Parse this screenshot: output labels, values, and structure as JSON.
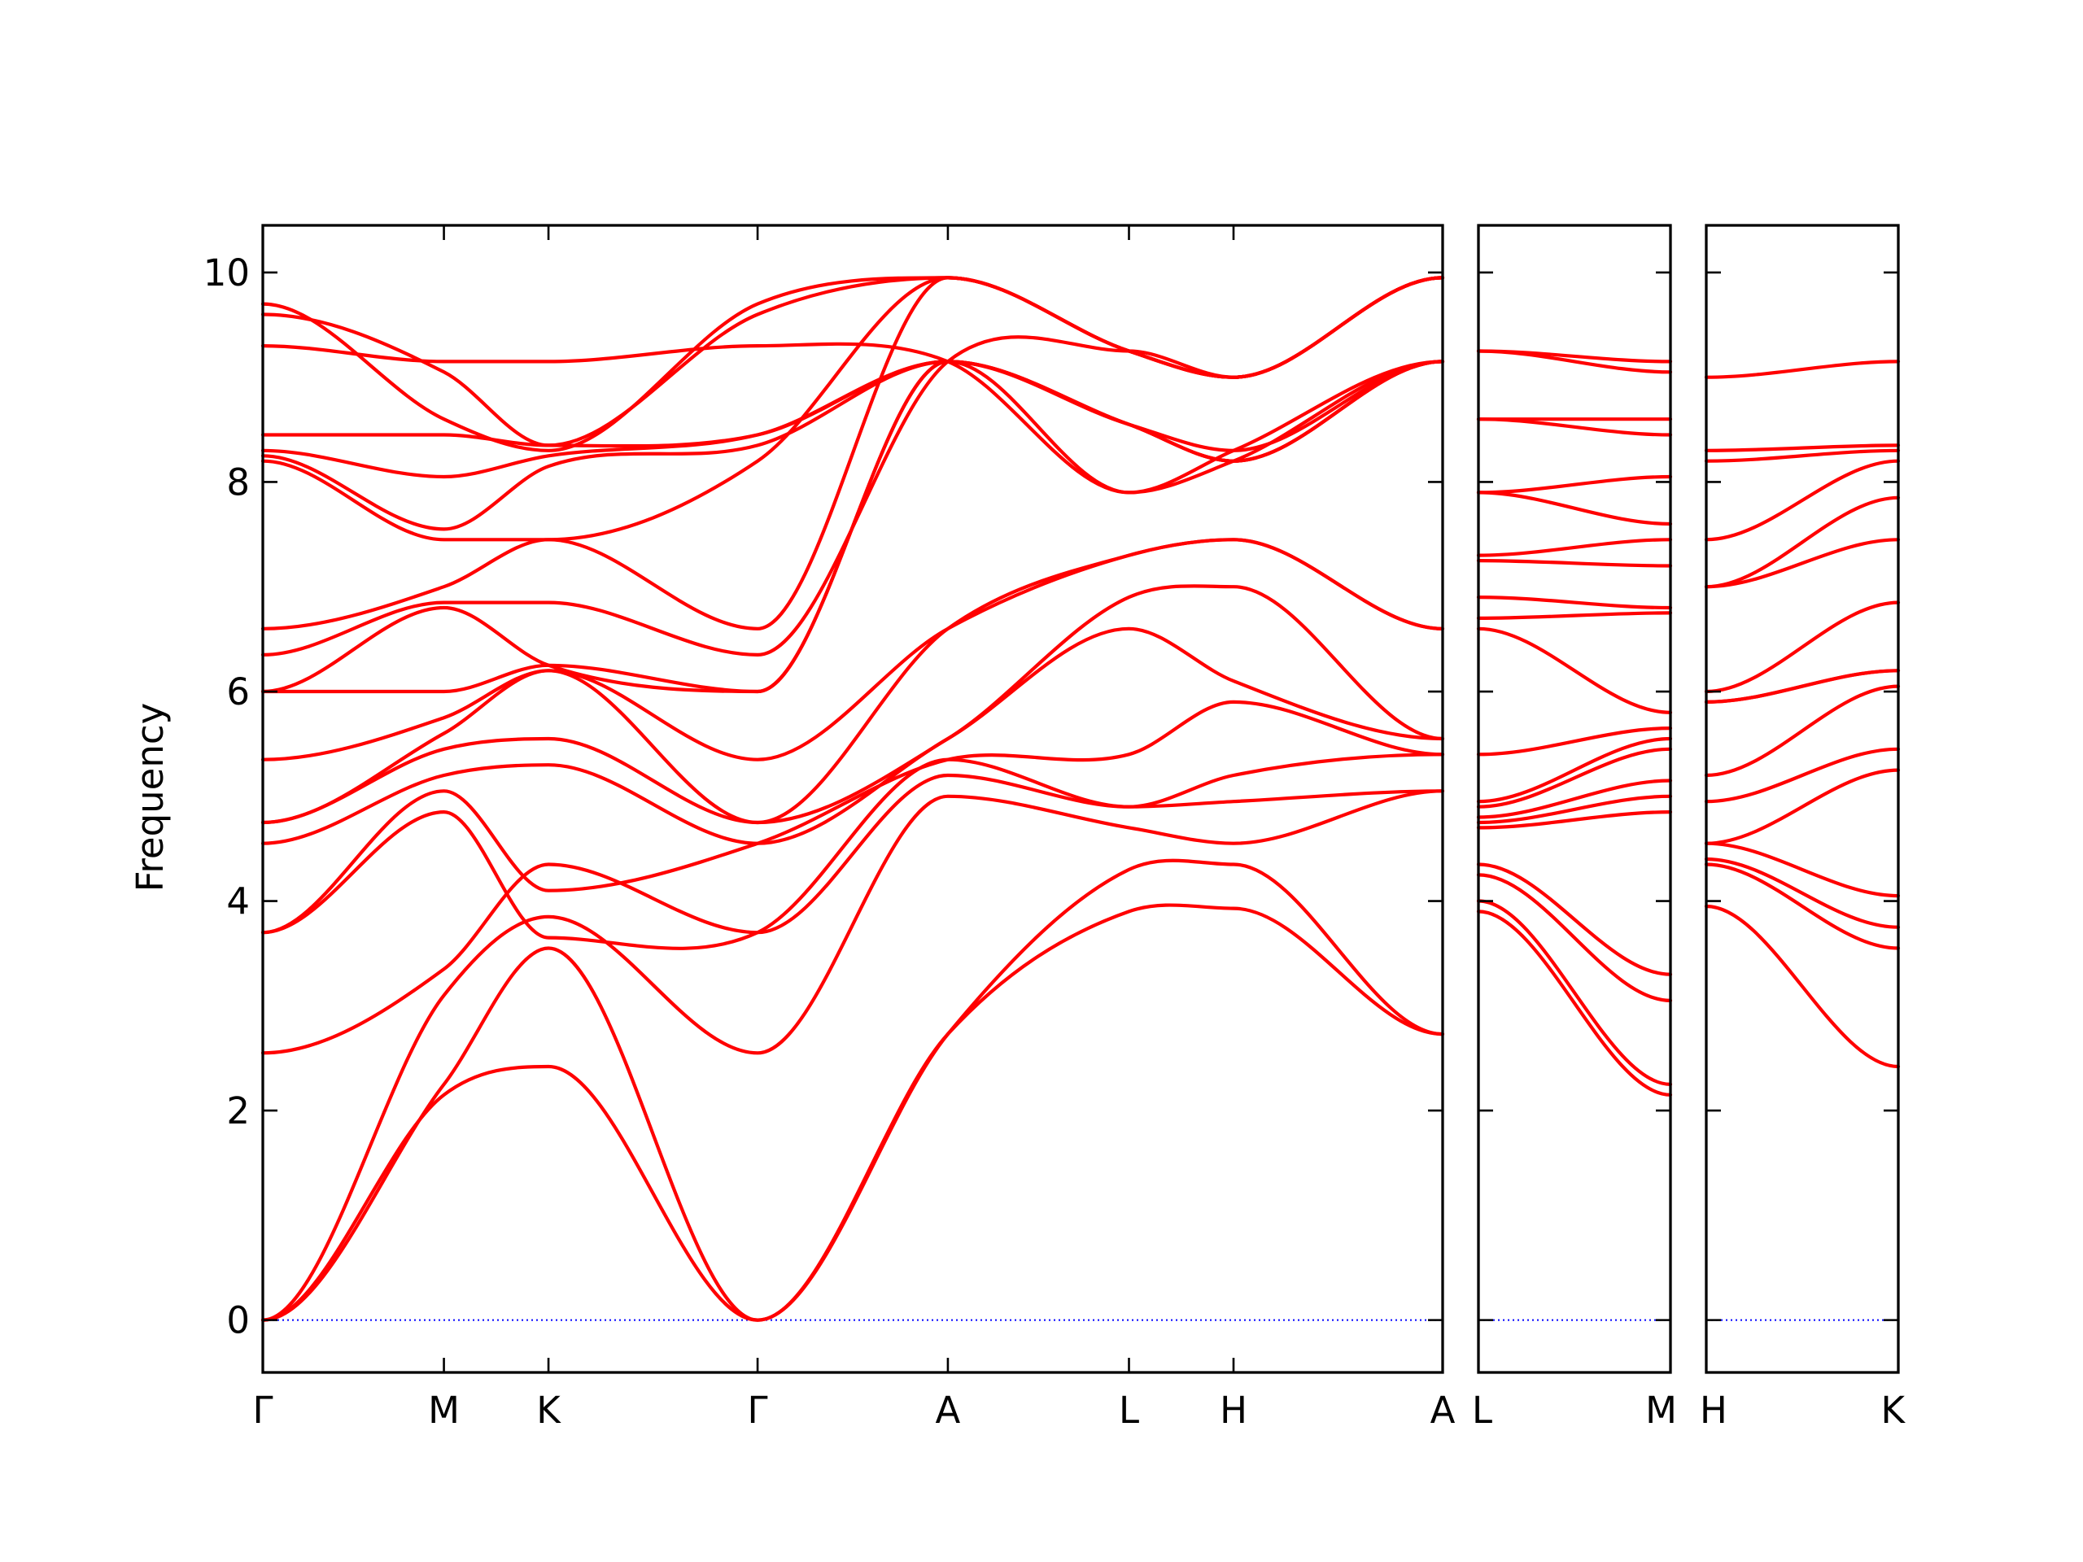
{
  "chart_data": {
    "type": "line",
    "title": "",
    "ylabel": "Frequency",
    "ylim": [
      -0.5,
      10.45
    ],
    "y_ticks": [
      0,
      2,
      4,
      6,
      8,
      10
    ],
    "grid": false,
    "colors": {
      "bands": "#ff0000",
      "zero_line": "#0000ff",
      "frame": "#000000"
    },
    "panels": [
      {
        "points": [
          "Γ",
          "M",
          "K",
          "Γ",
          "A",
          "L",
          "H",
          "A"
        ],
        "x": [
          0,
          0.866,
          1.366,
          2.366,
          3.276,
          4.142,
          4.642,
          5.642
        ],
        "bands": [
          [
            0,
            2.15,
            2.42,
            0,
            2.73,
            3.9,
            3.93,
            2.73
          ],
          [
            0,
            2.25,
            3.55,
            0,
            2.73,
            4.3,
            4.35,
            2.73
          ],
          [
            0,
            3.1,
            3.85,
            2.55,
            5.0,
            4.7,
            4.55,
            5.05
          ],
          [
            2.55,
            3.35,
            4.35,
            3.7,
            5.2,
            4.9,
            4.95,
            5.05
          ],
          [
            3.7,
            4.85,
            3.65,
            3.7,
            5.35,
            4.9,
            5.2,
            5.4
          ],
          [
            3.7,
            5.05,
            4.1,
            4.55,
            5.35,
            5.4,
            5.9,
            5.4
          ],
          [
            4.55,
            5.2,
            5.3,
            4.55,
            5.55,
            6.6,
            6.1,
            5.55
          ],
          [
            4.75,
            5.45,
            5.55,
            4.75,
            5.55,
            6.9,
            7.0,
            5.55
          ],
          [
            4.75,
            5.6,
            6.2,
            4.75,
            6.6,
            7.3,
            7.45,
            6.6
          ],
          [
            5.35,
            5.75,
            6.2,
            5.35,
            6.6,
            7.3,
            7.45,
            6.6
          ],
          [
            6.0,
            6.0,
            6.25,
            6.0,
            9.15,
            7.9,
            8.2,
            9.15
          ],
          [
            6.0,
            6.8,
            6.25,
            6.0,
            9.15,
            8.55,
            8.3,
            9.15
          ],
          [
            6.35,
            6.85,
            6.85,
            6.35,
            9.15,
            9.25,
            9.0,
            9.95
          ],
          [
            6.6,
            7.0,
            7.45,
            6.6,
            9.95,
            9.25,
            9.0,
            9.95
          ],
          [
            8.2,
            7.45,
            7.45,
            8.2,
            9.95,
            9.25,
            9.0,
            9.95
          ],
          [
            8.25,
            7.55,
            8.15,
            8.35,
            9.15,
            8.55,
            8.2,
            9.15
          ],
          [
            8.3,
            8.05,
            8.25,
            8.45,
            9.15,
            8.55,
            8.2,
            9.15
          ],
          [
            8.45,
            8.45,
            8.35,
            8.45,
            9.15,
            8.55,
            8.2,
            9.15
          ],
          [
            9.3,
            9.15,
            9.15,
            9.3,
            9.15,
            7.9,
            8.3,
            9.15
          ],
          [
            9.6,
            9.05,
            8.35,
            9.6,
            9.95,
            9.25,
            9.0,
            9.95
          ],
          [
            9.7,
            8.6,
            8.3,
            9.7,
            9.95,
            9.25,
            9.0,
            9.95
          ]
        ]
      },
      {
        "points": [
          "L",
          "M"
        ],
        "x": [
          0,
          1
        ],
        "bands": [
          [
            3.9,
            2.15
          ],
          [
            4.0,
            2.25
          ],
          [
            4.25,
            3.05
          ],
          [
            4.35,
            3.3
          ],
          [
            4.7,
            4.85
          ],
          [
            4.75,
            5.0
          ],
          [
            4.8,
            5.15
          ],
          [
            4.9,
            5.45
          ],
          [
            4.95,
            5.55
          ],
          [
            5.4,
            5.65
          ],
          [
            6.6,
            5.8
          ],
          [
            6.7,
            6.75
          ],
          [
            6.9,
            6.8
          ],
          [
            7.25,
            7.2
          ],
          [
            7.3,
            7.45
          ],
          [
            7.9,
            7.6
          ],
          [
            7.9,
            8.05
          ],
          [
            8.6,
            8.45
          ],
          [
            8.6,
            8.6
          ],
          [
            9.25,
            9.05
          ],
          [
            9.25,
            9.15
          ]
        ]
      },
      {
        "points": [
          "H",
          "K"
        ],
        "x": [
          0,
          1
        ],
        "bands": [
          [
            3.95,
            2.42
          ],
          [
            4.35,
            3.55
          ],
          [
            4.4,
            3.75
          ],
          [
            4.55,
            4.05
          ],
          [
            4.55,
            5.25
          ],
          [
            4.95,
            5.45
          ],
          [
            5.2,
            6.05
          ],
          [
            5.9,
            6.2
          ],
          [
            5.9,
            6.2
          ],
          [
            6.0,
            6.85
          ],
          [
            7.0,
            7.45
          ],
          [
            7.0,
            7.85
          ],
          [
            7.45,
            8.2
          ],
          [
            8.2,
            8.3
          ],
          [
            8.3,
            8.35
          ],
          [
            9.0,
            9.15
          ]
        ]
      }
    ]
  }
}
